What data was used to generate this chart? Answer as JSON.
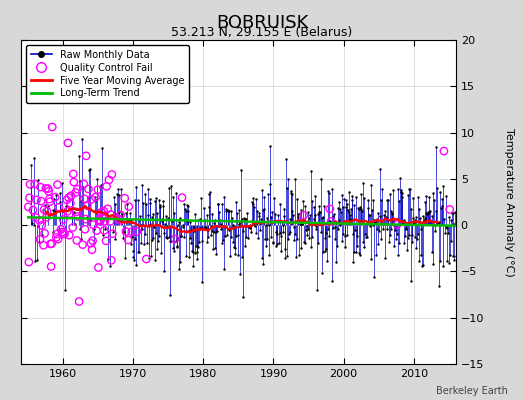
{
  "title": "BOBRUISK",
  "subtitle": "53.213 N, 29.155 E (Belarus)",
  "ylabel": "Temperature Anomaly (°C)",
  "credit": "Berkeley Earth",
  "ylim": [
    -15,
    20
  ],
  "yticks": [
    -15,
    -10,
    -5,
    0,
    5,
    10,
    15,
    20
  ],
  "xlim": [
    1954,
    2016
  ],
  "xticks": [
    1960,
    1970,
    1980,
    1990,
    2000,
    2010
  ],
  "start_year": 1955,
  "end_year": 2015,
  "raw_color": "#0000cc",
  "moving_avg_color": "#ff0000",
  "trend_color": "#00bb00",
  "qc_color": "#ff00ff",
  "background_color": "#d8d8d8",
  "plot_background": "#ffffff",
  "title_fontsize": 13,
  "subtitle_fontsize": 9,
  "seed": 17
}
